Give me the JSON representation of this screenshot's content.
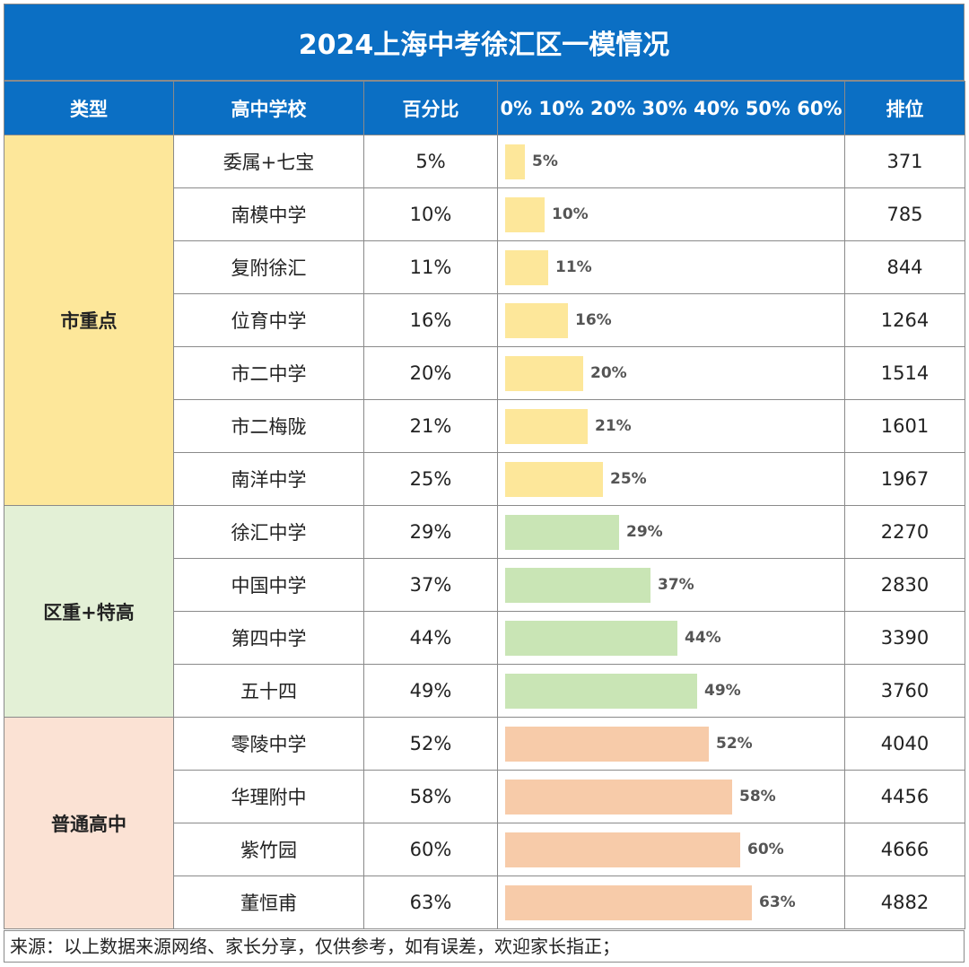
{
  "title": "2024上海中考徐汇区一模情况",
  "headers": {
    "type": "类型",
    "school": "高中学校",
    "percent": "百分比",
    "scale": "0% 10% 20% 30% 40% 50% 60%",
    "rank": "排位"
  },
  "colors": {
    "header_bg": "#0b6fc4",
    "type_bg": [
      "#fde79a",
      "#e3f0d6",
      "#fbe2d4"
    ],
    "bar": [
      "#fde79a",
      "#c9e5b5",
      "#f7cba9"
    ]
  },
  "groups": [
    {
      "type": "市重点",
      "rows": [
        {
          "school": "委属+七宝",
          "percent": "5%",
          "rank": "371"
        },
        {
          "school": "南模中学",
          "percent": "10%",
          "rank": "785"
        },
        {
          "school": "复附徐汇",
          "percent": "11%",
          "rank": "844"
        },
        {
          "school": "位育中学",
          "percent": "16%",
          "rank": "1264"
        },
        {
          "school": "市二中学",
          "percent": "20%",
          "rank": "1514"
        },
        {
          "school": "市二梅陇",
          "percent": "21%",
          "rank": "1601"
        },
        {
          "school": "南洋中学",
          "percent": "25%",
          "rank": "1967"
        }
      ]
    },
    {
      "type": "区重+特高",
      "rows": [
        {
          "school": "徐汇中学",
          "percent": "29%",
          "rank": "2270"
        },
        {
          "school": "中国中学",
          "percent": "37%",
          "rank": "2830"
        },
        {
          "school": "第四中学",
          "percent": "44%",
          "rank": "3390"
        },
        {
          "school": "五十四",
          "percent": "49%",
          "rank": "3760"
        }
      ]
    },
    {
      "type": "普通高中",
      "rows": [
        {
          "school": "零陵中学",
          "percent": "52%",
          "rank": "4040"
        },
        {
          "school": "华理附中",
          "percent": "58%",
          "rank": "4456"
        },
        {
          "school": "紫竹园",
          "percent": "60%",
          "rank": "4666"
        },
        {
          "school": "董恒甫",
          "percent": "63%",
          "rank": "4882"
        }
      ]
    }
  ],
  "chart_data": {
    "type": "bar",
    "categories": [
      "委属+七宝",
      "南模中学",
      "复附徐汇",
      "位育中学",
      "市二中学",
      "市二梅陇",
      "南洋中学",
      "徐汇中学",
      "中国中学",
      "第四中学",
      "五十四",
      "零陵中学",
      "华理附中",
      "紫竹园",
      "董恒甫"
    ],
    "values": [
      5,
      10,
      11,
      16,
      20,
      21,
      25,
      29,
      37,
      44,
      49,
      52,
      58,
      60,
      63
    ],
    "xlim": [
      0,
      60
    ],
    "tick_labels": [
      "0%",
      "10%",
      "20%",
      "30%",
      "40%",
      "50%",
      "60%"
    ]
  },
  "footer": "来源：以上数据来源网络、家长分享，仅供参考，如有误差，欢迎家长指正；"
}
